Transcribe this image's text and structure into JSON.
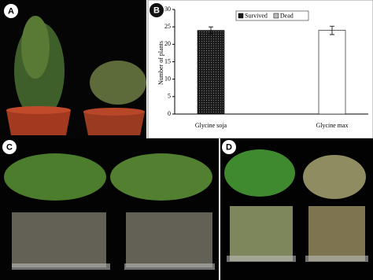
{
  "panels": {
    "a": "A",
    "b": "B",
    "c": "C",
    "d": "D"
  },
  "chart_data": {
    "type": "bar",
    "y_label": "Number of plants",
    "categories": [
      "Glycine soja",
      "Glycine max"
    ],
    "series": [
      {
        "name": "Survived",
        "color": "#1a1a1a",
        "values": [
          24,
          0
        ],
        "errors": [
          1,
          0
        ]
      },
      {
        "name": "Dead",
        "color": "#ffffff",
        "values": [
          0,
          24
        ],
        "errors": [
          0,
          1.2
        ]
      }
    ],
    "ylim": [
      0,
      30
    ],
    "yticks": [
      0,
      5,
      10,
      15,
      20,
      25,
      30
    ]
  }
}
